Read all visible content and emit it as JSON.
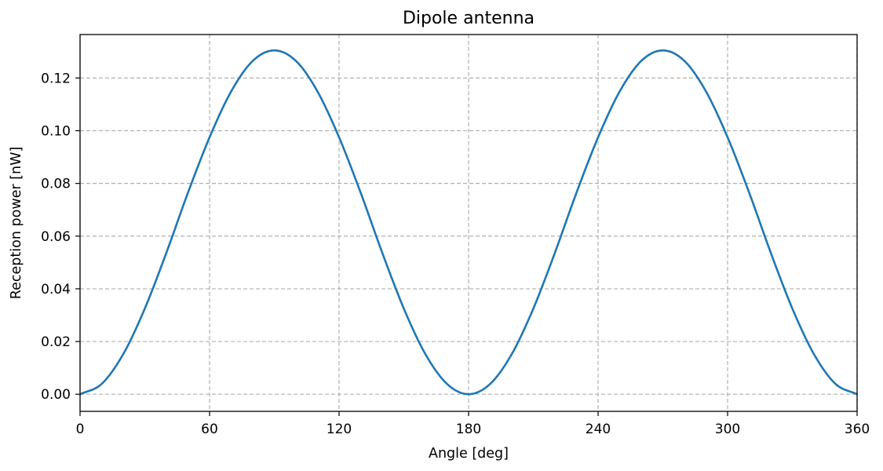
{
  "chart_data": {
    "type": "line",
    "title": "Dipole antenna",
    "xlabel": "Angle [deg]",
    "ylabel": "Reception power [nW]",
    "xlim": [
      0,
      360
    ],
    "ylim": [
      -0.0065,
      0.1365
    ],
    "xticks": [
      0,
      60,
      120,
      180,
      240,
      300,
      360
    ],
    "xtick_labels": [
      "0",
      "60",
      "120",
      "180",
      "240",
      "300",
      "360"
    ],
    "yticks": [
      0.0,
      0.02,
      0.04,
      0.06,
      0.08,
      0.1,
      0.12
    ],
    "ytick_labels": [
      "0.00",
      "0.02",
      "0.04",
      "0.06",
      "0.08",
      "0.10",
      "0.12"
    ],
    "grid": true,
    "series": [
      {
        "color": "#1f77b4",
        "x": [
          0,
          10,
          20,
          30,
          40,
          50,
          60,
          70,
          80,
          90,
          100,
          110,
          120,
          130,
          140,
          150,
          160,
          170,
          180,
          190,
          200,
          210,
          220,
          230,
          240,
          250,
          260,
          270,
          280,
          290,
          300,
          310,
          320,
          330,
          340,
          350,
          360
        ],
        "y": [
          0.0,
          0.0039,
          0.0152,
          0.0325,
          0.0537,
          0.0765,
          0.0975,
          0.1149,
          0.1265,
          0.1305,
          0.1265,
          0.1149,
          0.0975,
          0.0765,
          0.0537,
          0.0325,
          0.0152,
          0.0039,
          0.0,
          0.0039,
          0.0152,
          0.0325,
          0.0537,
          0.0765,
          0.0975,
          0.1149,
          0.1265,
          0.1305,
          0.1265,
          0.1149,
          0.0975,
          0.0765,
          0.0537,
          0.0325,
          0.0152,
          0.0039,
          0.0
        ]
      }
    ]
  }
}
